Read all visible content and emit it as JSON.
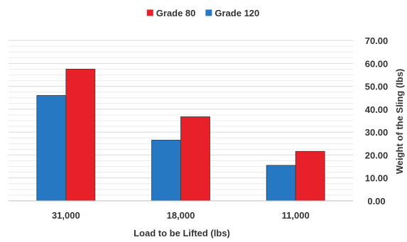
{
  "chart_data": {
    "type": "bar",
    "title": "",
    "xlabel": "Load to be Lifted (lbs)",
    "ylabel": "Weight of the Sling (lbs)",
    "categories": [
      "31,000",
      "18,000",
      "11,000"
    ],
    "series": [
      {
        "name": "Grade 120",
        "color": "#2678c2",
        "values": [
          46.0,
          26.5,
          15.5
        ]
      },
      {
        "name": "Grade 80",
        "color": "#e8202a",
        "values": [
          57.5,
          36.7,
          21.6
        ]
      }
    ],
    "legend_order": [
      "Grade 80",
      "Grade 120"
    ],
    "ylim": [
      0,
      70
    ],
    "yticks": [
      "0.00",
      "10.00",
      "20.00",
      "30.00",
      "40.00",
      "50.00",
      "60.00",
      "70.00"
    ],
    "y_axis_side": "right",
    "legend_position": "top-center",
    "grid": true
  }
}
